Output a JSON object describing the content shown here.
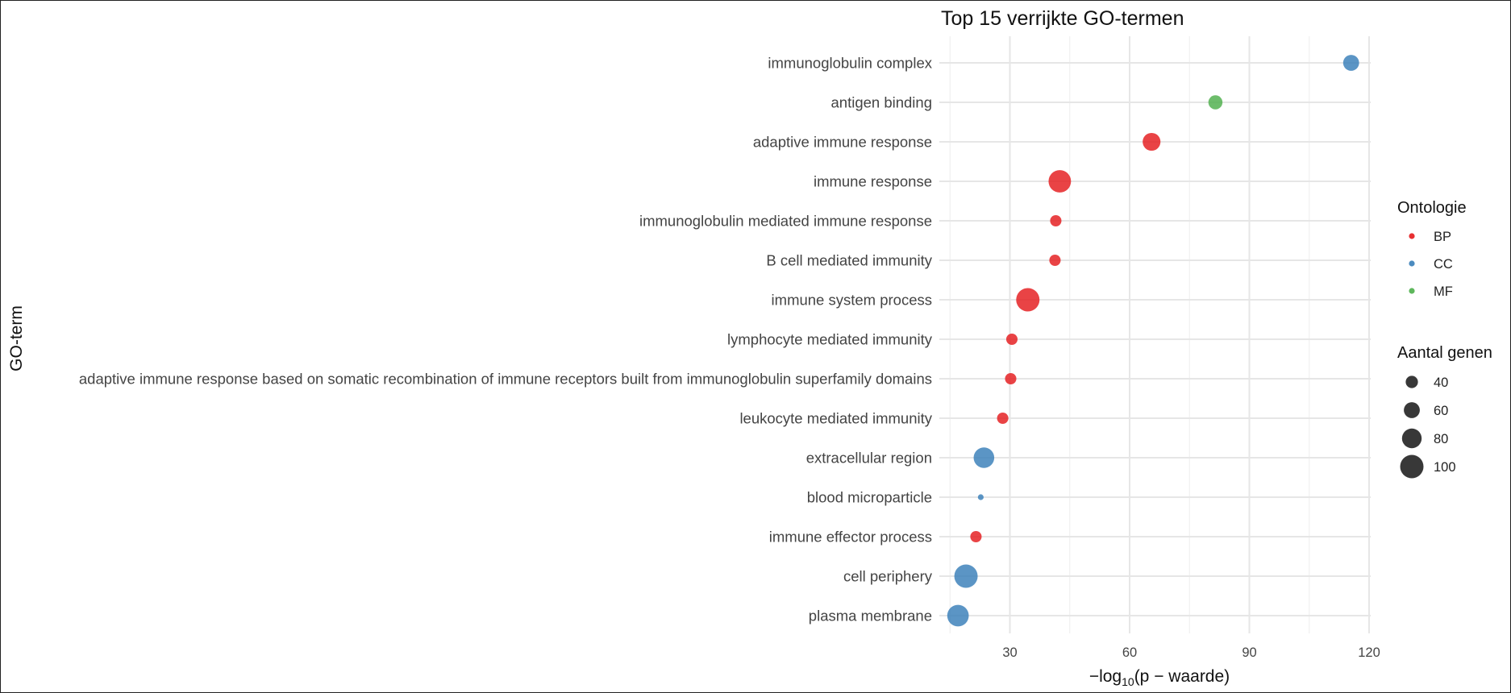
{
  "chart_data": {
    "type": "scatter",
    "title": "Top 15 verrijkte GO-termen",
    "ylabel": "GO-term",
    "xlabel_parts": {
      "prefix": "−log",
      "subscript": "10",
      "suffix": "(p − waarde)"
    },
    "x_ticks": [
      30,
      60,
      90,
      120
    ],
    "xlim": [
      13,
      122
    ],
    "grid": true,
    "legend_position": "right",
    "terms": [
      {
        "label": "immunoglobulin complex",
        "x": 115.5,
        "ontology": "CC",
        "genes": 60
      },
      {
        "label": "antigen binding",
        "x": 81.5,
        "ontology": "MF",
        "genes": 50
      },
      {
        "label": "adaptive immune response",
        "x": 65.5,
        "ontology": "BP",
        "genes": 70
      },
      {
        "label": "immune response",
        "x": 42.5,
        "ontology": "BP",
        "genes": 95
      },
      {
        "label": "immunoglobulin mediated immune response",
        "x": 41.5,
        "ontology": "BP",
        "genes": 35
      },
      {
        "label": "B cell mediated immunity",
        "x": 41.3,
        "ontology": "BP",
        "genes": 35
      },
      {
        "label": "immune system process",
        "x": 34.5,
        "ontology": "BP",
        "genes": 100
      },
      {
        "label": "lymphocyte mediated immunity",
        "x": 30.5,
        "ontology": "BP",
        "genes": 35
      },
      {
        "label": "adaptive immune response based on somatic recombination of immune receptors built from immunoglobulin superfamily domains",
        "x": 30.2,
        "ontology": "BP",
        "genes": 35
      },
      {
        "label": "leukocyte mediated immunity",
        "x": 28.2,
        "ontology": "BP",
        "genes": 35
      },
      {
        "label": "extracellular region",
        "x": 23.5,
        "ontology": "CC",
        "genes": 85
      },
      {
        "label": "blood microparticle",
        "x": 22.7,
        "ontology": "CC",
        "genes": 5
      },
      {
        "label": "immune effector process",
        "x": 21.5,
        "ontology": "BP",
        "genes": 35
      },
      {
        "label": "cell periphery",
        "x": 19.0,
        "ontology": "CC",
        "genes": 100
      },
      {
        "label": "plasma membrane",
        "x": 17.0,
        "ontology": "CC",
        "genes": 90
      }
    ],
    "colors": {
      "BP": "#E41A1C",
      "CC": "#377EB8",
      "MF": "#4DAF4A"
    },
    "legend_color": {
      "title": "Ontologie",
      "items": [
        {
          "label": "BP",
          "key": "BP"
        },
        {
          "label": "CC",
          "key": "CC"
        },
        {
          "label": "MF",
          "key": "MF"
        }
      ]
    },
    "legend_size": {
      "title": "Aantal genen",
      "items": [
        {
          "label": "40",
          "genes": 40
        },
        {
          "label": "60",
          "genes": 60
        },
        {
          "label": "80",
          "genes": 80
        },
        {
          "label": "100",
          "genes": 100
        }
      ]
    }
  }
}
